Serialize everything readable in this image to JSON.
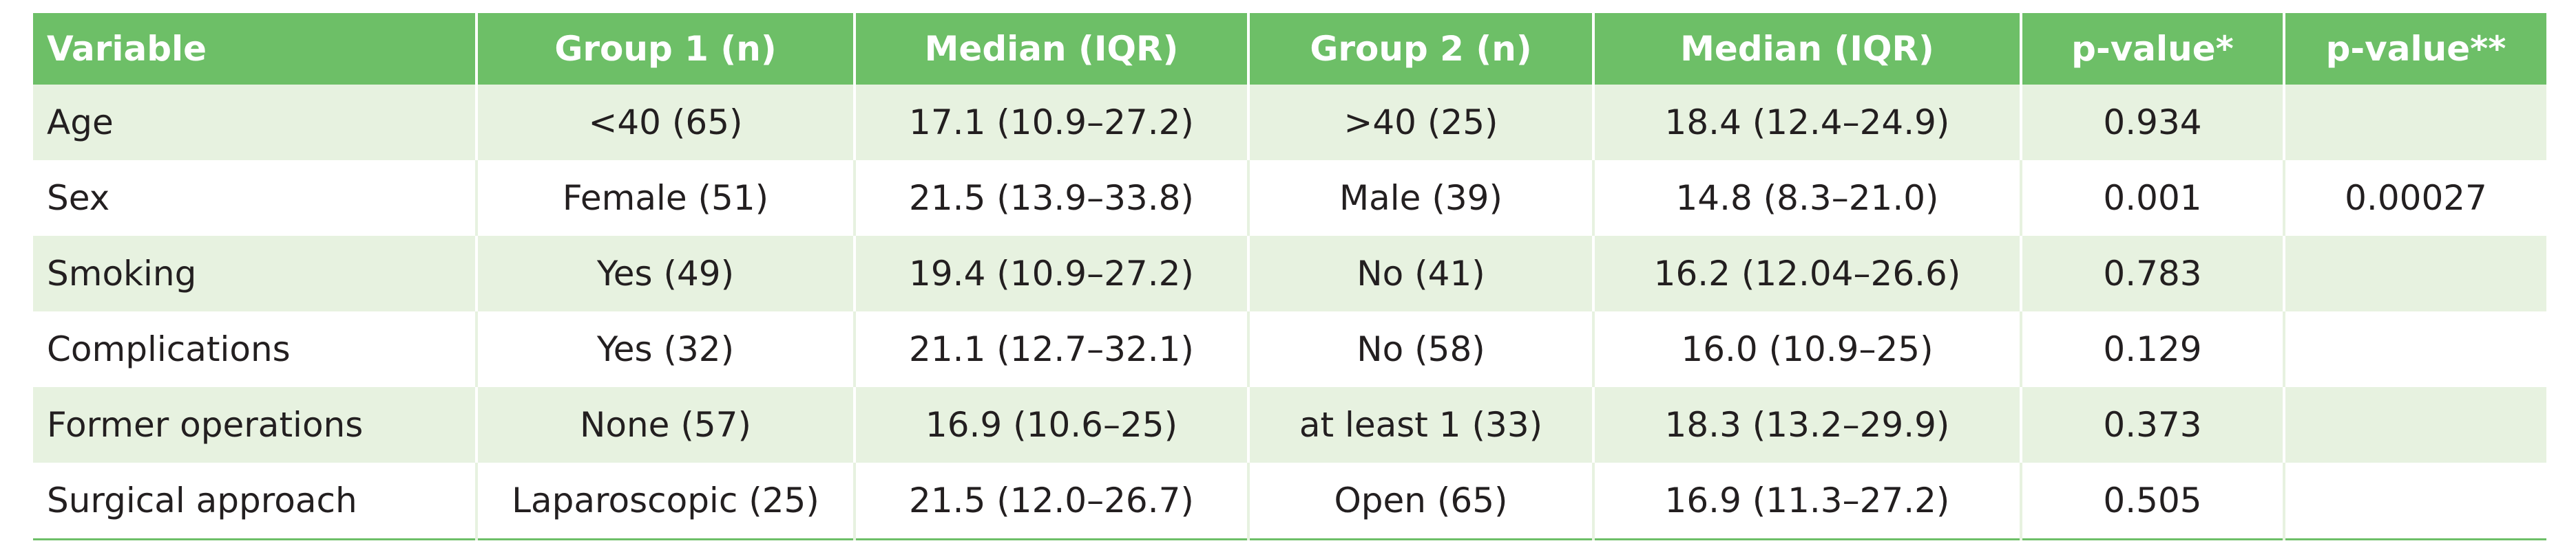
{
  "table": {
    "headers": [
      "Variable",
      "Group 1 (n)",
      "Median (IQR)",
      "Group 2 (n)",
      "Median (IQR)",
      "p-value*",
      "p-value**"
    ],
    "rows": [
      [
        "Age",
        "<40 (65)",
        "17.1 (10.9–27.2)",
        ">40 (25)",
        "18.4 (12.4–24.9)",
        "0.934"
      ],
      [
        "Sex",
        "Female (51)",
        "21.5 (13.9–33.8)",
        "Male (39)",
        "14.8 (8.3–21.0)",
        "0.001",
        "0.00027"
      ],
      [
        "Smoking",
        "Yes (49)",
        "19.4 (10.9–27.2)",
        "No (41)",
        "16.2 (12.04–26.6)",
        "0.783"
      ],
      [
        "Complications",
        "Yes (32)",
        "21.1 (12.7–32.1)",
        "No (58)",
        "16.0 (10.9–25)",
        "0.129"
      ],
      [
        "Former operations",
        "None (57)",
        "16.9 (10.6–25)",
        "at least 1 (33)",
        "18.3 (13.2–29.9)",
        "0.373"
      ],
      [
        "Surgical approach",
        "Laparoscopic (25)",
        "21.5 (12.0–26.7)",
        "Open (65)",
        "16.9 (11.3–27.2)",
        "0.505"
      ]
    ]
  }
}
